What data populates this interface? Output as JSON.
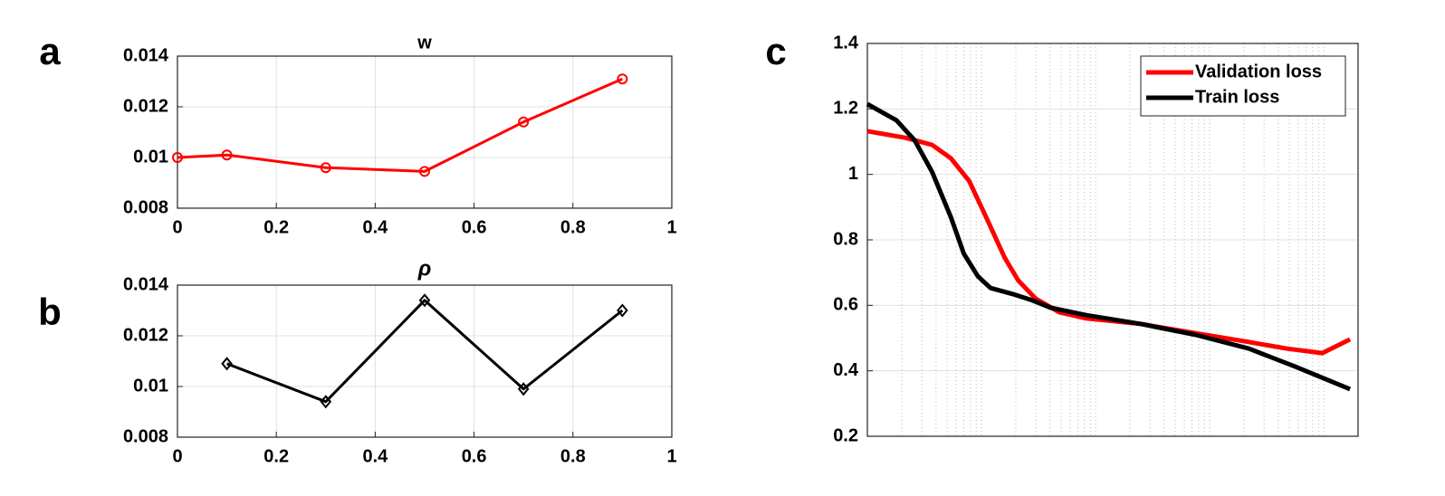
{
  "chart_data": [
    {
      "type": "line",
      "panel_label": "a",
      "title": "w",
      "x": [
        0,
        0.1,
        0.3,
        0.5,
        0.7,
        0.9
      ],
      "values": [
        0.01,
        0.0101,
        0.0096,
        0.00945,
        0.0114,
        0.0131
      ],
      "color": "#ff0000",
      "marker": "circle",
      "xlim": [
        0,
        1
      ],
      "xticks": [
        0,
        0.2,
        0.4,
        0.6,
        0.8,
        1
      ],
      "ylim": [
        0.008,
        0.014
      ],
      "yticks": [
        0.008,
        0.01,
        0.012,
        0.014
      ],
      "grid": true
    },
    {
      "type": "line",
      "panel_label": "b",
      "title": "ρ",
      "x": [
        0.1,
        0.3,
        0.5,
        0.7,
        0.9
      ],
      "values": [
        0.0109,
        0.0094,
        0.0134,
        0.0099,
        0.013
      ],
      "color": "#000000",
      "marker": "diamond",
      "xlim": [
        0,
        1
      ],
      "xticks": [
        0,
        0.2,
        0.4,
        0.6,
        0.8,
        1
      ],
      "ylim": [
        0.008,
        0.014
      ],
      "yticks": [
        0.008,
        0.01,
        0.012,
        0.014
      ],
      "grid": true
    },
    {
      "type": "line",
      "panel_label": "c",
      "xscale": "log",
      "xlim": [
        1,
        20000
      ],
      "ylim": [
        0.2,
        1.4
      ],
      "yticks": [
        0.2,
        0.4,
        0.6,
        0.8,
        1,
        1.2,
        1.4
      ],
      "grid": true,
      "legend": "upper right",
      "series": [
        {
          "name": "Validation loss",
          "color": "#ff0000",
          "x": [
            1,
            2.15,
            3.7,
            5.4,
            7.8,
            11,
            16,
            21,
            30,
            48,
            83,
            250,
            750,
            2200,
            4700,
            9700,
            17000
          ],
          "values": [
            1.132,
            1.112,
            1.09,
            1.049,
            0.98,
            0.869,
            0.745,
            0.676,
            0.62,
            0.579,
            0.56,
            0.543,
            0.515,
            0.488,
            0.468,
            0.454,
            0.496
          ]
        },
        {
          "name": "Train loss",
          "color": "#000000",
          "x": [
            1,
            1.8,
            2.6,
            3.7,
            5.4,
            7,
            9.3,
            12,
            19,
            28,
            40,
            83,
            250,
            750,
            2200,
            5600,
            17000
          ],
          "values": [
            1.215,
            1.165,
            1.104,
            1.007,
            0.869,
            0.758,
            0.689,
            0.653,
            0.634,
            0.615,
            0.593,
            0.57,
            0.543,
            0.51,
            0.468,
            0.413,
            0.344
          ]
        }
      ]
    }
  ]
}
